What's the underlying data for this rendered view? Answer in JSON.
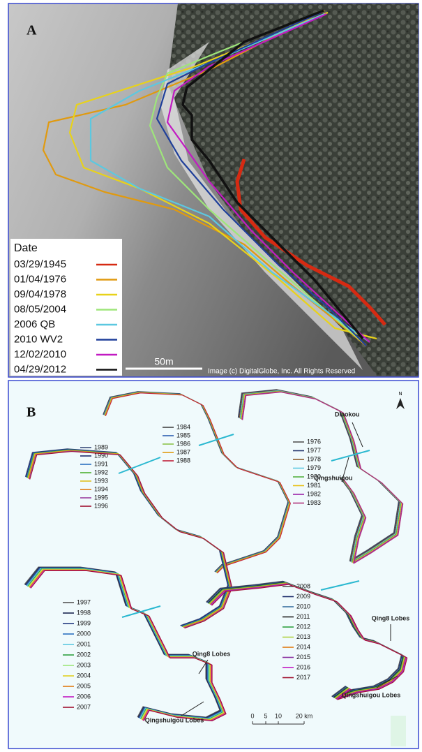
{
  "panel_a": {
    "label": "A",
    "legend_title": "Date",
    "legend": [
      {
        "label": "03/29/1945",
        "color": "#d62a12"
      },
      {
        "label": "01/04/1976",
        "color": "#e09a10"
      },
      {
        "label": "09/04/1978",
        "color": "#e8d21a"
      },
      {
        "label": "08/05/2004",
        "color": "#9ee67a"
      },
      {
        "label": "2006 QB",
        "color": "#5cc8e0"
      },
      {
        "label": "2010 WV2",
        "color": "#1f3f9a"
      },
      {
        "label": "12/02/2010",
        "color": "#c21ac2"
      },
      {
        "label": "04/29/2012",
        "color": "#111111"
      }
    ],
    "scale_label": "50m",
    "credit": "Image (c) DigitalGlobe, Inc. All Rights Reserved"
  },
  "panel_b": {
    "label": "B",
    "north": "N",
    "scale_labels": [
      "0",
      "5",
      "10",
      "20 km"
    ],
    "annotations": [
      "Diaokou",
      "Qingshuigou",
      "Qing8 Lobes",
      "Qingshuigou Lobes",
      "Qing8 Lobes",
      "Qingshuigou Lobes"
    ],
    "groups": [
      {
        "years": [
          {
            "label": "1984",
            "color": "#444"
          },
          {
            "label": "1985",
            "color": "#2d5fb0"
          },
          {
            "label": "1986",
            "color": "#8bc34a"
          },
          {
            "label": "1987",
            "color": "#e09a10"
          },
          {
            "label": "1988",
            "color": "#c0203a"
          }
        ]
      },
      {
        "years": [
          {
            "label": "1976",
            "color": "#555"
          },
          {
            "label": "1977",
            "color": "#24356e"
          },
          {
            "label": "1978",
            "color": "#8a5a2a"
          },
          {
            "label": "1979",
            "color": "#5cc8e0"
          },
          {
            "label": "1980",
            "color": "#55b040"
          },
          {
            "label": "1981",
            "color": "#e8c21a"
          },
          {
            "label": "1982",
            "color": "#9a22a8"
          },
          {
            "label": "1983",
            "color": "#b0307a"
          }
        ]
      },
      {
        "years": [
          {
            "label": "1989",
            "color": "#3a4a7a"
          },
          {
            "label": "1990",
            "color": "#1a2a6a"
          },
          {
            "label": "1991",
            "color": "#2a70c0"
          },
          {
            "label": "1992",
            "color": "#4cb030"
          },
          {
            "label": "1993",
            "color": "#e0c020"
          },
          {
            "label": "1994",
            "color": "#e07a10"
          },
          {
            "label": "1995",
            "color": "#9a40a0"
          },
          {
            "label": "1996",
            "color": "#a01030"
          }
        ]
      },
      {
        "years": [
          {
            "label": "1997",
            "color": "#555"
          },
          {
            "label": "1998",
            "color": "#1a2550"
          },
          {
            "label": "1999",
            "color": "#233a80"
          },
          {
            "label": "2000",
            "color": "#2a70c0"
          },
          {
            "label": "2001",
            "color": "#5cc8e0"
          },
          {
            "label": "2002",
            "color": "#30a040"
          },
          {
            "label": "2003",
            "color": "#9ee67a"
          },
          {
            "label": "2004",
            "color": "#e0d020"
          },
          {
            "label": "2005",
            "color": "#e07a10"
          },
          {
            "label": "2006",
            "color": "#c21ac2"
          },
          {
            "label": "2007",
            "color": "#a01030"
          }
        ]
      },
      {
        "years": [
          {
            "label": "2008",
            "color": "#555"
          },
          {
            "label": "2009",
            "color": "#1a2a6a"
          },
          {
            "label": "2010",
            "color": "#3a70a0"
          },
          {
            "label": "2011",
            "color": "#222"
          },
          {
            "label": "2012",
            "color": "#30a040"
          },
          {
            "label": "2013",
            "color": "#b0d040"
          },
          {
            "label": "2014",
            "color": "#e07a10"
          },
          {
            "label": "2015",
            "color": "#8a30a0"
          },
          {
            "label": "2016",
            "color": "#c21ac2"
          },
          {
            "label": "2017",
            "color": "#a01030"
          }
        ]
      }
    ]
  }
}
